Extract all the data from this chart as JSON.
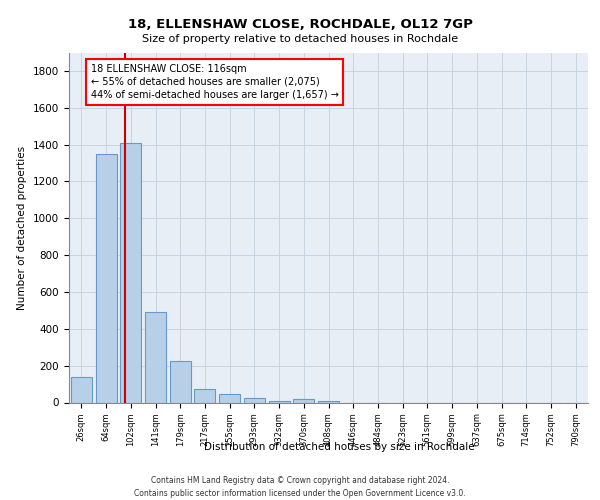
{
  "title1": "18, ELLENSHAW CLOSE, ROCHDALE, OL12 7GP",
  "title2": "Size of property relative to detached houses in Rochdale",
  "xlabel": "Distribution of detached houses by size in Rochdale",
  "ylabel": "Number of detached properties",
  "footer1": "Contains HM Land Registry data © Crown copyright and database right 2024.",
  "footer2": "Contains public sector information licensed under the Open Government Licence v3.0.",
  "bar_labels": [
    "26sqm",
    "64sqm",
    "102sqm",
    "141sqm",
    "179sqm",
    "217sqm",
    "255sqm",
    "293sqm",
    "332sqm",
    "370sqm",
    "408sqm",
    "446sqm",
    "484sqm",
    "523sqm",
    "561sqm",
    "599sqm",
    "637sqm",
    "675sqm",
    "714sqm",
    "752sqm",
    "790sqm"
  ],
  "bar_values": [
    137,
    1350,
    1410,
    490,
    225,
    75,
    45,
    25,
    10,
    20,
    10,
    0,
    0,
    0,
    0,
    0,
    0,
    0,
    0,
    0,
    0
  ],
  "bar_color": "#b8cfe8",
  "bar_edge_color": "#6699cc",
  "grid_color": "#c8d4e0",
  "bg_color": "#e8eef5",
  "annotation_line1": "18 ELLENSHAW CLOSE: 116sqm",
  "annotation_line2": "← 55% of detached houses are smaller (2,075)",
  "annotation_line3": "44% of semi-detached houses are larger (1,657) →",
  "vline_x": 1.78,
  "ylim": [
    0,
    1900
  ],
  "yticks": [
    0,
    200,
    400,
    600,
    800,
    1000,
    1200,
    1400,
    1600,
    1800
  ]
}
